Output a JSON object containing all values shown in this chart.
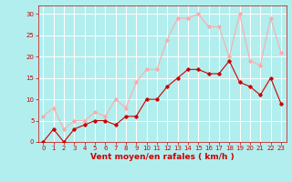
{
  "hours": [
    0,
    1,
    2,
    3,
    4,
    5,
    6,
    7,
    8,
    9,
    10,
    11,
    12,
    13,
    14,
    15,
    16,
    17,
    18,
    19,
    20,
    21,
    22,
    23
  ],
  "wind_avg": [
    0,
    3,
    0,
    3,
    4,
    5,
    5,
    4,
    6,
    6,
    10,
    10,
    13,
    15,
    17,
    17,
    16,
    16,
    19,
    14,
    13,
    11,
    15,
    9
  ],
  "wind_gust": [
    6,
    8,
    3,
    5,
    5,
    7,
    6,
    10,
    8,
    14,
    17,
    17,
    24,
    29,
    29,
    30,
    27,
    27,
    20,
    30,
    19,
    18,
    29,
    21
  ],
  "color_avg": "#cc0000",
  "color_gust": "#ffaaaa",
  "bg_color": "#b2eeee",
  "grid_color": "#ffffff",
  "xlabel": "Vent moyen/en rafales ( km/h )",
  "ylim": [
    0,
    32
  ],
  "yticks": [
    0,
    5,
    10,
    15,
    20,
    25,
    30
  ],
  "label_color": "#cc0000",
  "tick_fontsize": 5,
  "xlabel_fontsize": 6.5
}
